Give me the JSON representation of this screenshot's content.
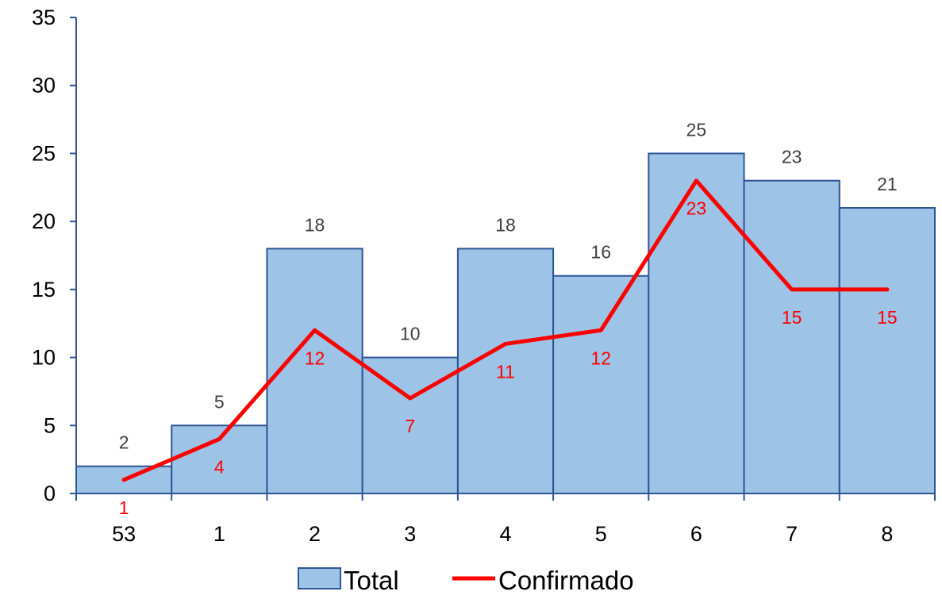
{
  "chart_data": {
    "type": "bar",
    "categories": [
      "53",
      "1",
      "2",
      "3",
      "4",
      "5",
      "6",
      "7",
      "8"
    ],
    "series": [
      {
        "name": "Total",
        "type": "bar",
        "values": [
          2,
          5,
          18,
          10,
          18,
          16,
          25,
          23,
          21
        ]
      },
      {
        "name": "Confirmado",
        "type": "line",
        "values": [
          1,
          4,
          12,
          7,
          11,
          12,
          23,
          15,
          15
        ]
      }
    ],
    "title": "",
    "xlabel": "",
    "ylabel": "",
    "ylim": [
      0,
      35
    ],
    "yticks": [
      0,
      5,
      10,
      15,
      20,
      25,
      30,
      35
    ],
    "grid": false,
    "legend": "bottom",
    "colors": {
      "bar_fill": "#9dc3e6",
      "bar_stroke": "#2f5597",
      "line": "#ff0000",
      "bar_label": "#404040",
      "line_label": "#ff0000",
      "axis": "#2f5597"
    }
  }
}
